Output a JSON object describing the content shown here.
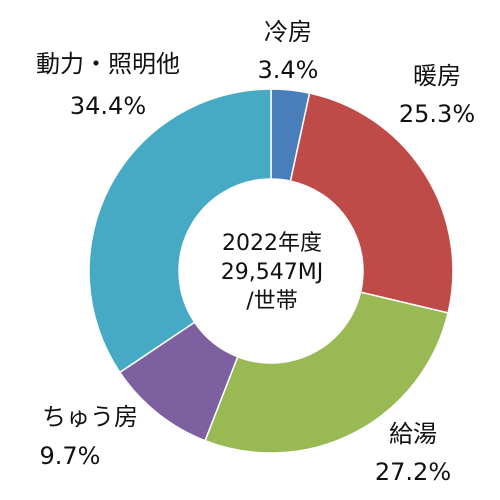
{
  "chart_data": {
    "type": "pie",
    "donut": true,
    "title": "",
    "center_text": [
      "2022年度",
      "29,547MJ",
      "/世帯"
    ],
    "start_angle_deg": 0,
    "direction": "clockwise",
    "slices": [
      {
        "label": "冷房",
        "value": 3.4,
        "value_label": "3.4%",
        "color": "#4a7ebb"
      },
      {
        "label": "暖房",
        "value": 25.3,
        "value_label": "25.3%",
        "color": "#be4b48"
      },
      {
        "label": "給湯",
        "value": 27.2,
        "value_label": "27.2%",
        "color": "#98b954"
      },
      {
        "label": "ちゅう房",
        "value": 9.7,
        "value_label": "9.7%",
        "color": "#7d60a0"
      },
      {
        "label": "動力・照明他",
        "value": 34.4,
        "value_label": "34.4%",
        "color": "#46aac4"
      }
    ]
  }
}
